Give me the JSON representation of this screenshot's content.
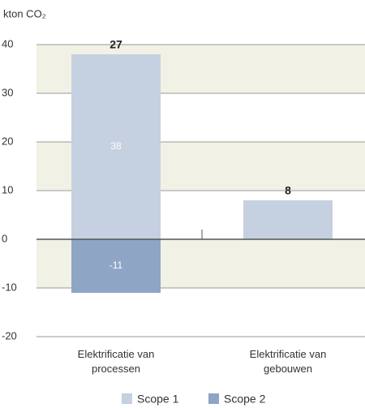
{
  "chart_data": {
    "type": "bar",
    "stacked": true,
    "y_label": "kton CO₂",
    "categories": [
      "Elektrificatie van processen",
      "Elektrificatie van gebouwen"
    ],
    "series": [
      {
        "name": "Scope 1",
        "color": "#c5d0e0",
        "values": [
          38,
          8
        ]
      },
      {
        "name": "Scope 2",
        "color": "#8fa5c6",
        "values": [
          -11,
          0
        ]
      }
    ],
    "totals": [
      27,
      8
    ],
    "ylim": [
      -20,
      40
    ],
    "yticks": [
      -20,
      -10,
      0,
      10,
      20,
      30,
      40
    ],
    "band_color": "#f1f1e6",
    "grid": true,
    "legend": "bottom"
  }
}
